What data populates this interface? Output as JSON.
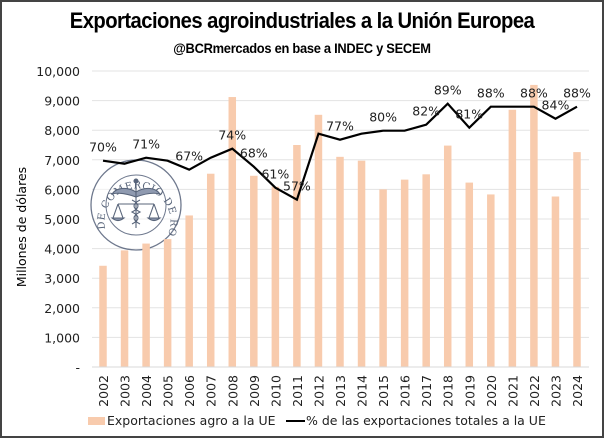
{
  "chart_data": {
    "type": "bar+line",
    "title": "Exportaciones agroindustriales a la Unión Europea",
    "subtitle": "@BCRmercados en base a INDEC y SECEM",
    "xlabel": "",
    "ylabel": "Millones de dólares",
    "ylim": [
      0,
      10000
    ],
    "y_ticks": [
      0,
      1000,
      2000,
      3000,
      4000,
      5000,
      6000,
      7000,
      8000,
      9000,
      10000
    ],
    "y_tick_labels": [
      "-",
      "1,000",
      "2,000",
      "3,000",
      "4,000",
      "5,000",
      "6,000",
      "7,000",
      "8,000",
      "9,000",
      "10,000"
    ],
    "grid": true,
    "categories": [
      "2002",
      "2003",
      "2004",
      "2005",
      "2006",
      "2007",
      "2008",
      "2009",
      "2010",
      "2011",
      "2012",
      "2013",
      "2014",
      "2015",
      "2016",
      "2017",
      "2018",
      "2019",
      "2020",
      "2021",
      "2022",
      "2023",
      "2024"
    ],
    "series": [
      {
        "name": "Exportaciones agro a la UE",
        "type": "bar",
        "axis": "primary",
        "color": "#F8CBAD",
        "values": [
          3420,
          3940,
          4170,
          4320,
          5120,
          6530,
          9120,
          6460,
          6090,
          7500,
          8520,
          7100,
          6970,
          6000,
          6330,
          6510,
          7480,
          6230,
          5830,
          8690,
          9530,
          5760,
          7260
        ]
      },
      {
        "name": "% de las exportaciones totales a la UE",
        "type": "line",
        "axis": "secondary",
        "unit": "%",
        "color": "#000000",
        "values": [
          70,
          69,
          71,
          70,
          67,
          71,
          74,
          68,
          61,
          57,
          79,
          77,
          79,
          80,
          80,
          82,
          89,
          81,
          88,
          88,
          88,
          84,
          88
        ],
        "data_labels": [
          "70%",
          "",
          "71%",
          "",
          "67%",
          "",
          "74%",
          "68%",
          "61%",
          "57%",
          "",
          "77%",
          "",
          "80%",
          "",
          "82%",
          "89%",
          "81%",
          "88%",
          "",
          "88%",
          "84%",
          "88%"
        ]
      }
    ],
    "legend": {
      "position": "bottom",
      "entries": [
        "Exportaciones agro a la UE",
        "% de las exportaciones totales a la UE"
      ]
    },
    "watermark": {
      "text": "BOLSA DE COMERCIO DE ROSARIO",
      "icon": "caduceus-scales-icon"
    }
  }
}
